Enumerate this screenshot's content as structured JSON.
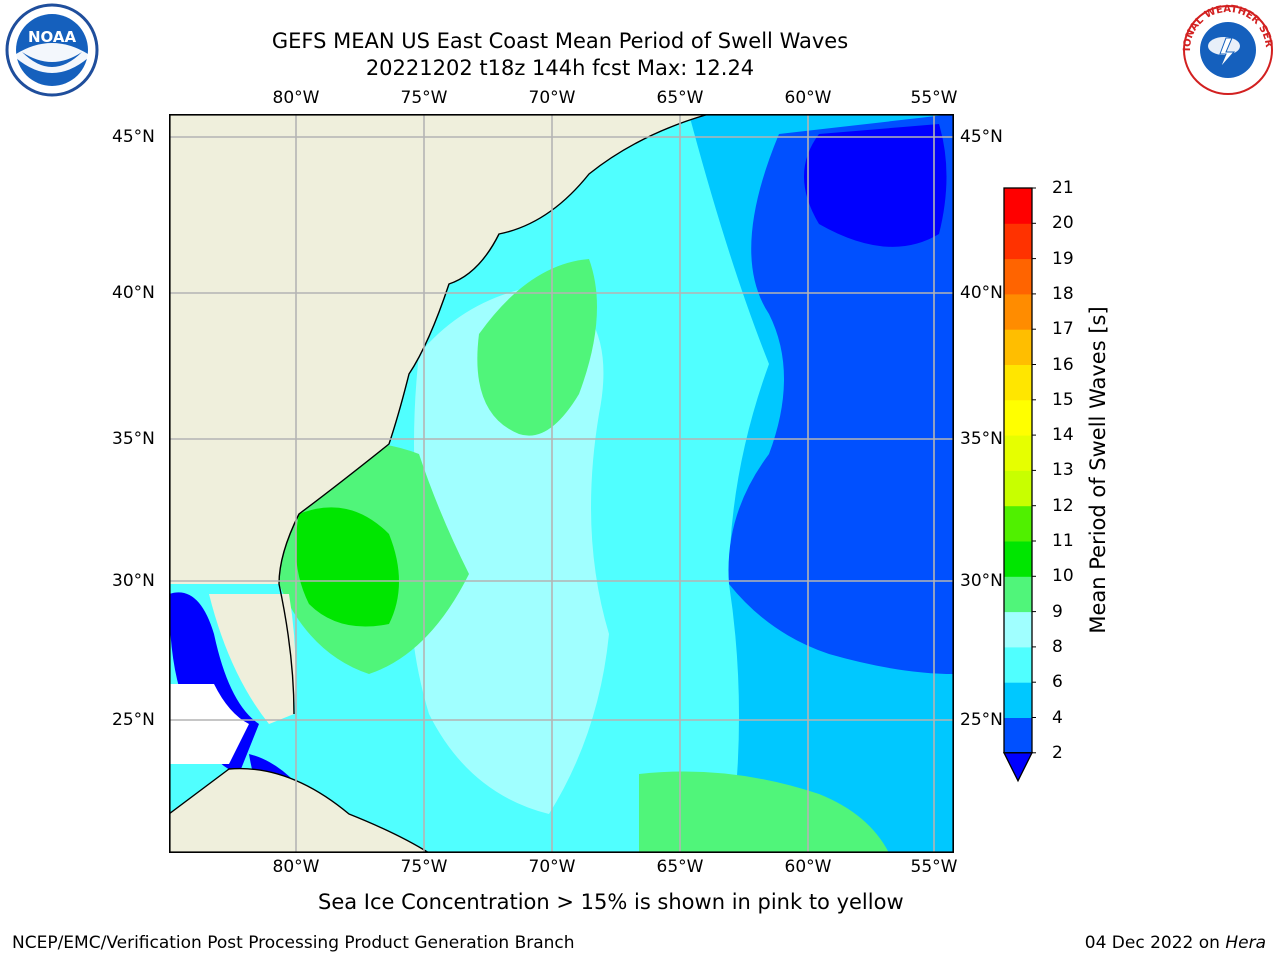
{
  "title_line1": "GEFS MEAN US East Coast Mean Period of Swell Waves",
  "title_line2": "20221202 t18z 144h fcst   Max: 12.24",
  "map": {
    "lon_ticks": [
      "80°W",
      "75°W",
      "70°W",
      "65°W",
      "60°W",
      "55°W"
    ],
    "lat_ticks": [
      "45°N",
      "40°N",
      "35°N",
      "30°N",
      "25°N"
    ],
    "land_color": "#efefdc",
    "grid_color": "#b4b4b4"
  },
  "colorbar": {
    "title": "Mean Period of Swell Waves [s]",
    "levels": [
      "2",
      "4",
      "6",
      "8",
      "9",
      "10",
      "11",
      "12",
      "13",
      "14",
      "15",
      "16",
      "17",
      "18",
      "19",
      "20",
      "21"
    ],
    "colors": [
      "#0050ff",
      "#00c8ff",
      "#50ffff",
      "#a0ffff",
      "#50f57a",
      "#00e600",
      "#50f000",
      "#c8ff00",
      "#e6ff00",
      "#ffff00",
      "#ffe600",
      "#ffbe00",
      "#ff8c00",
      "#ff6400",
      "#ff3200",
      "#ff0000"
    ],
    "under_color": "#0000ff"
  },
  "footnote": "Sea Ice Concentration > 15% is shown in pink to yellow",
  "credit": "NCEP/EMC/Verification Post Processing Product Generation Branch",
  "date": "04 Dec 2022",
  "date_on": " on ",
  "host": "Hera",
  "logos": {
    "noaa": "NOAA",
    "nws": "NATIONAL WEATHER SERVICE"
  }
}
